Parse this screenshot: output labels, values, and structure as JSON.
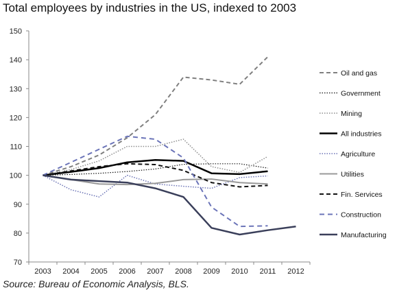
{
  "chart_data": {
    "type": "line",
    "title": "Total employees by industries in the US, indexed to 2003",
    "source": "Source: Bureau of Economic Analysis, BLS.",
    "x": [
      "2003",
      "2004",
      "2005",
      "2006",
      "2007",
      "2008",
      "2009",
      "2010",
      "2011",
      "2012"
    ],
    "ylim": [
      70,
      150
    ],
    "yticks": [
      70,
      80,
      90,
      100,
      110,
      120,
      130,
      140,
      150
    ],
    "grid": false,
    "legend_position": "right",
    "series": [
      {
        "name": "Oil and gas",
        "color": "#7f7f7f",
        "width": 2,
        "dash": "6,4",
        "values": [
          100,
          103,
          107,
          113,
          121,
          134,
          133,
          131.5,
          141,
          null
        ]
      },
      {
        "name": "Government",
        "color": "#111111",
        "width": 1.2,
        "dash": "1.5,2",
        "values": [
          100,
          100.3,
          100.7,
          101.3,
          102.2,
          103.8,
          104,
          104,
          102.5,
          null
        ]
      },
      {
        "name": "Mining",
        "color": "#8c8c8c",
        "width": 1.5,
        "dash": "1.5,2",
        "values": [
          100,
          102,
          105,
          110,
          110,
          112.5,
          103,
          101,
          106.5,
          null
        ]
      },
      {
        "name": "All industries",
        "color": "#000000",
        "width": 2.5,
        "dash": "",
        "values": [
          100,
          101.2,
          102.5,
          104.5,
          105.3,
          105,
          100.7,
          100.4,
          101.4,
          null
        ]
      },
      {
        "name": "Agriculture",
        "color": "#6a72b5",
        "width": 1.5,
        "dash": "1.5,2",
        "values": [
          100,
          95,
          92.5,
          100,
          97,
          96.2,
          95.5,
          99.2,
          99.8,
          null
        ]
      },
      {
        "name": "Utilities",
        "color": "#999999",
        "width": 2,
        "dash": "",
        "values": [
          100,
          98.5,
          97,
          96.8,
          97.2,
          98.5,
          98.7,
          97.5,
          97,
          null
        ]
      },
      {
        "name": "Fin. Services",
        "color": "#111111",
        "width": 2,
        "dash": "6,4",
        "values": [
          100,
          101.5,
          103,
          104,
          103.7,
          101.7,
          97.5,
          96,
          96.5,
          null
        ]
      },
      {
        "name": "Construction",
        "color": "#6b74b8",
        "width": 2,
        "dash": "7,5",
        "values": [
          100,
          104.5,
          109,
          113.5,
          112.5,
          106,
          89,
          82.3,
          82.5,
          null
        ]
      },
      {
        "name": "Manufacturing",
        "color": "#3a3f5a",
        "width": 2.5,
        "dash": "",
        "values": [
          100,
          98.5,
          98,
          97.5,
          95.5,
          92.5,
          81.8,
          79.5,
          81,
          82.3
        ]
      }
    ]
  }
}
